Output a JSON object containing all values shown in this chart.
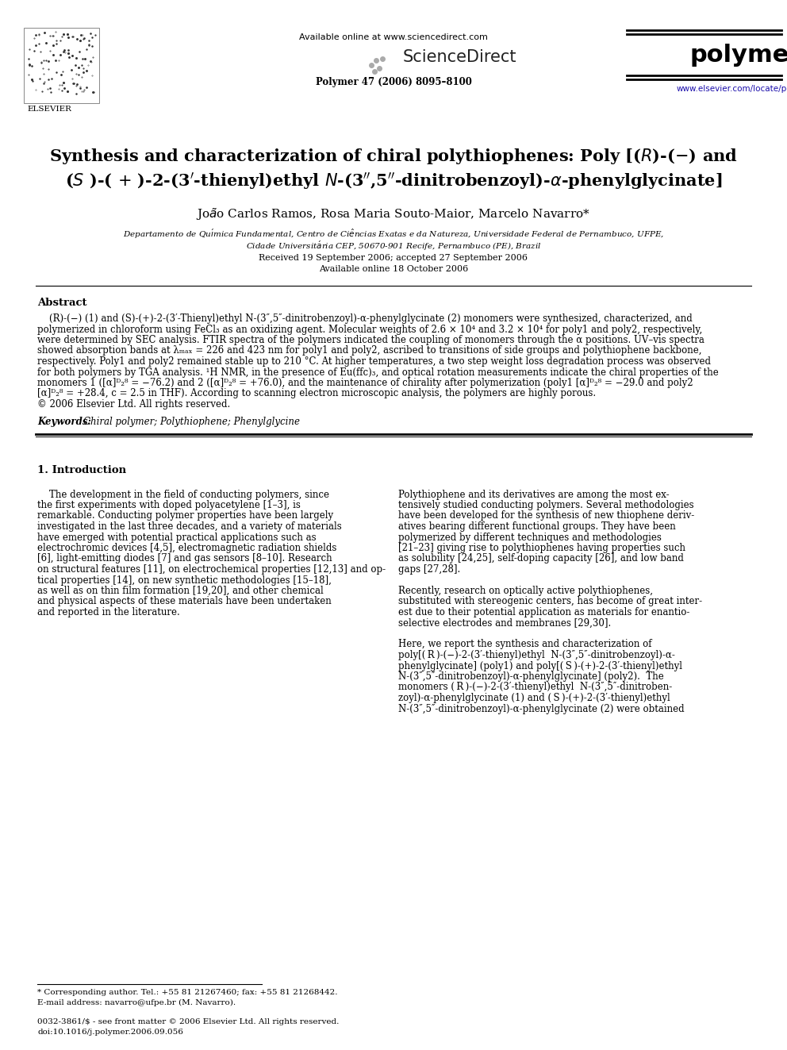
{
  "bg_color": "#ffffff",
  "page_width": 9.92,
  "page_height": 13.23,
  "dpi": 100,
  "header": {
    "available_online": "Available online at www.sciencedirect.com",
    "sciencedirect": "ScienceDirect",
    "journal_name": "polymer",
    "journal_info": "Polymer 47 (2006) 8095–8100",
    "journal_url": "www.elsevier.com/locate/polymer"
  },
  "title_line1": "Synthesis and characterization of chiral polythiophenes: Poly [( R )-(−) and",
  "title_line2": "( S  )-( + )-2-(3′-thienyl)ethyl  N-(3″,5″-dinitrobenzoyl)-α-phenylglycinate]",
  "authors": "João Carlos Ramos, Rosa Maria Souto-Maior, Marcelo Navarro*",
  "affiliation1": "Departamento de Química Fundamental, Centro de Ciências Exatas e da Natureza, Universidade Federal de Pernambuco, UFPE,",
  "affiliation2": "Cidade Universitária CEP, 50670-901 Recife, Pernambuco (PE), Brazil",
  "received": "Received 19 September 2006; accepted 27 September 2006",
  "available": "Available online 18 October 2006",
  "abstract_title": "Abstract",
  "abstract_lines": [
    "    (R)-(−) (1) and (S)-(+)-2-(3′-Thienyl)ethyl N-(3″,5″-dinitrobenzoyl)-α-phenylglycinate (2) monomers were synthesized, characterized, and",
    "polymerized in chloroform using FeCl₃ as an oxidizing agent. Molecular weights of 2.6 × 10⁴ and 3.2 × 10⁴ for poly1 and poly2, respectively,",
    "were determined by SEC analysis. FTIR spectra of the polymers indicated the coupling of monomers through the α positions. UV–vis spectra",
    "showed absorption bands at λₘₐₓ = 226 and 423 nm for poly1 and poly2, ascribed to transitions of side groups and polythiophene backbone,",
    "respectively. Poly1 and poly2 remained stable up to 210 °C. At higher temperatures, a two step weight loss degradation process was observed",
    "for both polymers by TGA analysis. ¹H NMR, in the presence of Eu(ffc)₃, and optical rotation measurements indicate the chiral properties of the",
    "monomers 1 ([α]ᴰ₂⁸ = −76.2) and 2 ([α]ᴰ₂⁸ = +76.0), and the maintenance of chirality after polymerization (poly1 [α]ᴰ₂⁸ = −29.0 and poly2",
    "[α]ᴰ₂⁸ = +28.4, c = 2.5 in THF). According to scanning electron microscopic analysis, the polymers are highly porous."
  ],
  "copyright": "© 2006 Elsevier Ltd. All rights reserved.",
  "keywords_label": "Keywords: ",
  "keywords_text": "Chiral polymer; Polythiophene; Phenylglycine",
  "intro_heading": "1. Introduction",
  "intro_col1": [
    "    The development in the field of conducting polymers, since",
    "the first experiments with doped polyacetylene [1–3], is",
    "remarkable. Conducting polymer properties have been largely",
    "investigated in the last three decades, and a variety of materials",
    "have emerged with potential practical applications such as",
    "electrochromic devices [4,5], electromagnetic radiation shields",
    "[6], light-emitting diodes [7] and gas sensors [8–10]. Research",
    "on structural features [11], on electrochemical properties [12,13] and op-",
    "tical properties [14], on new synthetic methodologies [15–18],",
    "as well as on thin film formation [19,20], and other chemical",
    "and physical aspects of these materials have been undertaken",
    "and reported in the literature."
  ],
  "intro_col2_p1": [
    "Polythiophene and its derivatives are among the most ex-",
    "tensively studied conducting polymers. Several methodologies",
    "have been developed for the synthesis of new thiophene deriv-",
    "atives bearing different functional groups. They have been",
    "polymerized by different techniques and methodologies",
    "[21–23] giving rise to polythiophenes having properties such",
    "as solubility [24,25], self-doping capacity [26], and low band",
    "gaps [27,28]."
  ],
  "intro_col2_p2": [
    "Recently, research on optically active polythiophenes,",
    "substituted with stereogenic centers, has become of great inter-",
    "est due to their potential application as materials for enantio-",
    "selective electrodes and membranes [29,30]."
  ],
  "intro_col2_p3": [
    "Here, we report the synthesis and characterization of",
    "poly[( R )-(−)-2-(3′-thienyl)ethyl  N-(3″,5″-dinitrobenzoyl)-α-",
    "phenylglycinate] (poly1) and poly[( S )-(+)-2-(3′-thienyl)ethyl",
    "N-(3″,5″-dinitrobenzoyl)-α-phenylglycinate] (poly2).  The",
    "monomers ( R )-(−)-2-(3′-thienyl)ethyl  N-(3″,5″-dinitroben-",
    "zoyl)-α-phenylglycinate (1) and ( S )-(+)-2-(3′-thienyl)ethyl",
    "N-(3″,5″-dinitrobenzoyl)-α-phenylglycinate (2) were obtained"
  ],
  "footnote_star": "* Corresponding author. Tel.: +55 81 21267460; fax: +55 81 21268442.",
  "footnote_email": "E-mail address: navarro@ufpe.br (M. Navarro).",
  "footer_issn": "0032-3861/$ - see front matter © 2006 Elsevier Ltd. All rights reserved.",
  "footer_doi": "doi:10.1016/j.polymer.2006.09.056"
}
